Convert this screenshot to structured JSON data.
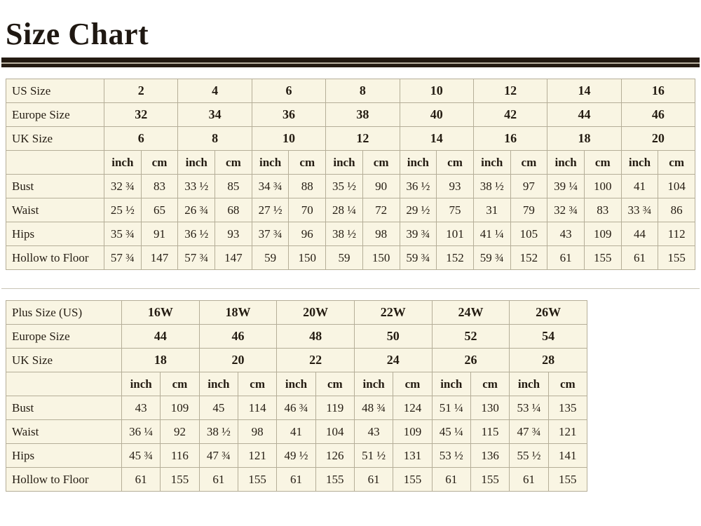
{
  "page": {
    "title": "Size Chart"
  },
  "colors": {
    "table_background": "#f9f5e3",
    "table_border": "#b5ae98",
    "title_rule": "#241b12",
    "text": "#241c12"
  },
  "tables": [
    {
      "name": "standard-size-table",
      "header_rows": [
        {
          "label": "US Size",
          "values": [
            "2",
            "4",
            "6",
            "8",
            "10",
            "12",
            "14",
            "16"
          ]
        },
        {
          "label": "Europe Size",
          "values": [
            "32",
            "34",
            "36",
            "38",
            "40",
            "42",
            "44",
            "46"
          ]
        },
        {
          "label": "UK Size",
          "values": [
            "6",
            "8",
            "10",
            "12",
            "14",
            "16",
            "18",
            "20"
          ]
        }
      ],
      "units": [
        "inch",
        "cm"
      ],
      "measure_rows": [
        {
          "label": "Bust",
          "values": [
            "32 ¾",
            "83",
            "33 ½",
            "85",
            "34 ¾",
            "88",
            "35 ½",
            "90",
            "36 ½",
            "93",
            "38 ½",
            "97",
            "39 ¼",
            "100",
            "41",
            "104"
          ]
        },
        {
          "label": "Waist",
          "values": [
            "25 ½",
            "65",
            "26 ¾",
            "68",
            "27 ½",
            "70",
            "28 ¼",
            "72",
            "29 ½",
            "75",
            "31",
            "79",
            "32 ¾",
            "83",
            "33 ¾",
            "86"
          ]
        },
        {
          "label": "Hips",
          "values": [
            "35 ¾",
            "91",
            "36 ½",
            "93",
            "37 ¾",
            "96",
            "38 ½",
            "98",
            "39 ¾",
            "101",
            "41 ¼",
            "105",
            "43",
            "109",
            "44",
            "112"
          ]
        },
        {
          "label": "Hollow to Floor",
          "values": [
            "57 ¾",
            "147",
            "57 ¾",
            "147",
            "59",
            "150",
            "59",
            "150",
            "59 ¾",
            "152",
            "59 ¾",
            "152",
            "61",
            "155",
            "61",
            "155"
          ]
        }
      ]
    },
    {
      "name": "plus-size-table",
      "header_rows": [
        {
          "label": "Plus Size (US)",
          "values": [
            "16W",
            "18W",
            "20W",
            "22W",
            "24W",
            "26W"
          ]
        },
        {
          "label": "Europe Size",
          "values": [
            "44",
            "46",
            "48",
            "50",
            "52",
            "54"
          ]
        },
        {
          "label": "UK Size",
          "values": [
            "18",
            "20",
            "22",
            "24",
            "26",
            "28"
          ]
        }
      ],
      "units": [
        "inch",
        "cm"
      ],
      "measure_rows": [
        {
          "label": "Bust",
          "values": [
            "43",
            "109",
            "45",
            "114",
            "46 ¾",
            "119",
            "48 ¾",
            "124",
            "51 ¼",
            "130",
            "53 ¼",
            "135"
          ]
        },
        {
          "label": "Waist",
          "values": [
            "36 ¼",
            "92",
            "38 ½",
            "98",
            "41",
            "104",
            "43",
            "109",
            "45 ¼",
            "115",
            "47 ¾",
            "121"
          ]
        },
        {
          "label": "Hips",
          "values": [
            "45 ¾",
            "116",
            "47 ¾",
            "121",
            "49 ½",
            "126",
            "51 ½",
            "131",
            "53 ½",
            "136",
            "55 ½",
            "141"
          ]
        },
        {
          "label": "Hollow to Floor",
          "values": [
            "61",
            "155",
            "61",
            "155",
            "61",
            "155",
            "61",
            "155",
            "61",
            "155",
            "61",
            "155"
          ]
        }
      ]
    }
  ]
}
